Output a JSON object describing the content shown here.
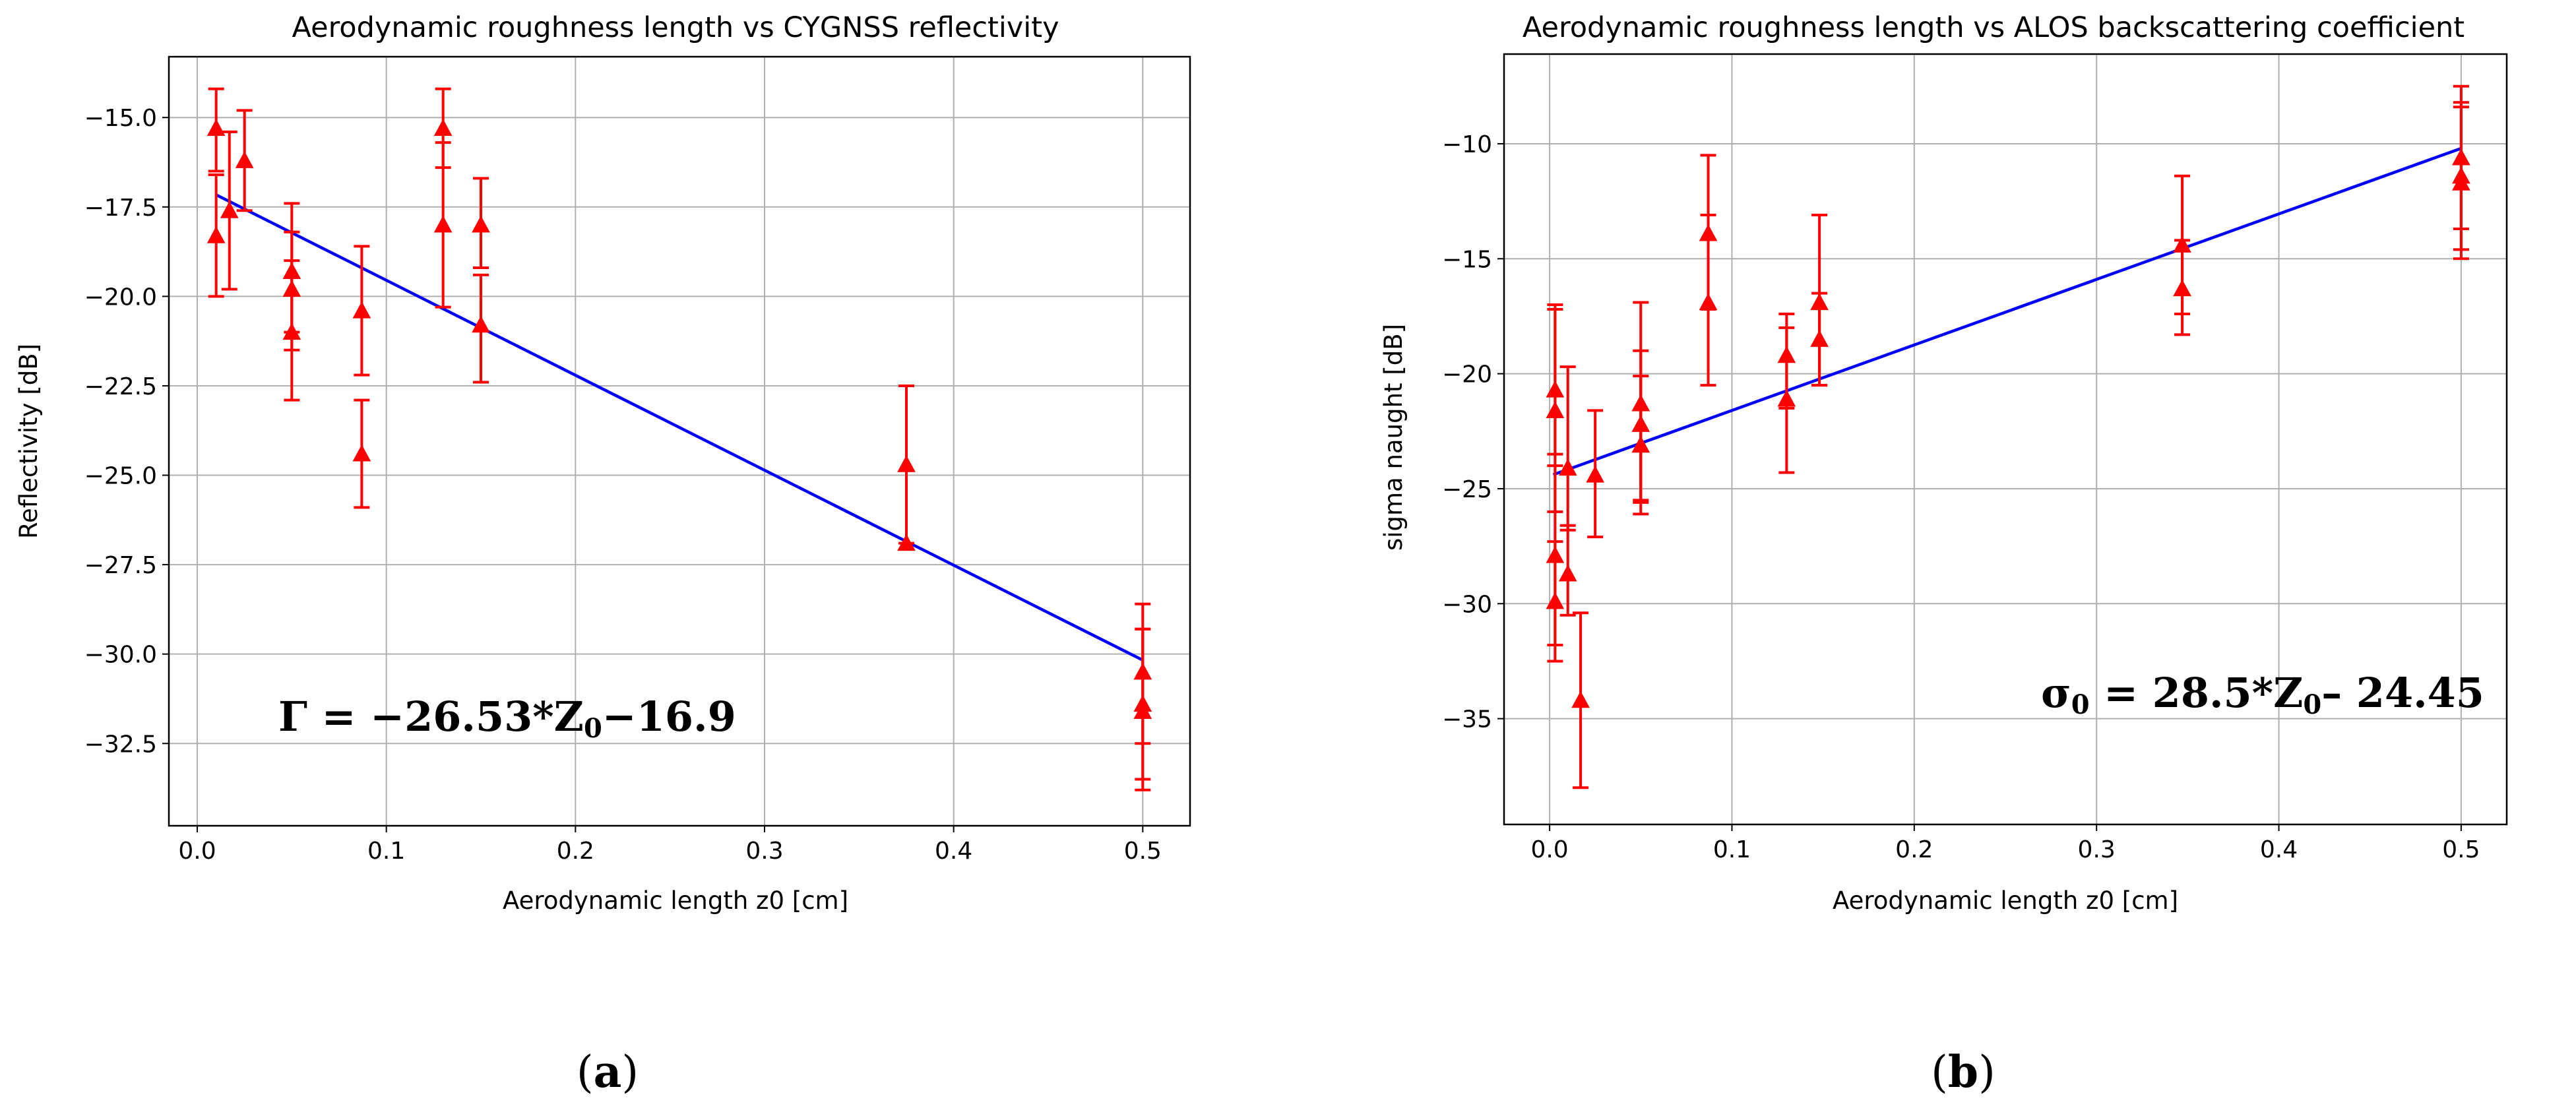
{
  "chart_data": [
    {
      "type": "scatter",
      "panel_label": "a",
      "title": "Aerodynamic roughness length vs CYGNSS reflectivity",
      "xlabel": "Aerodynamic length z0 [cm]",
      "ylabel": "Reflectivity [dB]",
      "xlim": [
        -0.015,
        0.525
      ],
      "ylim": [
        -34.8,
        -13.3
      ],
      "xticks": [
        0.0,
        0.1,
        0.2,
        0.3,
        0.4,
        0.5
      ],
      "xtick_labels": [
        "0.0",
        "0.1",
        "0.2",
        "0.3",
        "0.4",
        "0.5"
      ],
      "yticks": [
        -15.0,
        -17.5,
        -20.0,
        -22.5,
        -25.0,
        -27.5,
        -30.0,
        -32.5
      ],
      "ytick_labels": [
        "−15.0",
        "−17.5",
        "−20.0",
        "−22.5",
        "−25.0",
        "−27.5",
        "−30.0",
        "−32.5"
      ],
      "grid": true,
      "marker_color": "#ff0000",
      "line_color": "#0000ff",
      "points": [
        {
          "x": 0.01,
          "y": -15.3,
          "lo": -16.5,
          "hi": -14.2
        },
        {
          "x": 0.01,
          "y": -18.3,
          "lo": -20.0,
          "hi": -16.6
        },
        {
          "x": 0.017,
          "y": -17.6,
          "lo": -19.8,
          "hi": -15.4
        },
        {
          "x": 0.025,
          "y": -16.2,
          "lo": -17.6,
          "hi": -14.8
        },
        {
          "x": 0.05,
          "y": -19.3,
          "lo": -21.0,
          "hi": -17.4
        },
        {
          "x": 0.05,
          "y": -19.8,
          "lo": -21.5,
          "hi": -18.2
        },
        {
          "x": 0.05,
          "y": -21.0,
          "lo": -22.9,
          "hi": -19.0
        },
        {
          "x": 0.087,
          "y": -20.4,
          "lo": -22.2,
          "hi": -18.6
        },
        {
          "x": 0.087,
          "y": -24.4,
          "lo": -25.9,
          "hi": -22.9
        },
        {
          "x": 0.13,
          "y": -15.3,
          "lo": -16.4,
          "hi": -14.2
        },
        {
          "x": 0.13,
          "y": -18.0,
          "lo": -20.3,
          "hi": -15.7
        },
        {
          "x": 0.15,
          "y": -18.0,
          "lo": -19.2,
          "hi": -16.7
        },
        {
          "x": 0.15,
          "y": -20.8,
          "lo": -22.4,
          "hi": -19.4
        },
        {
          "x": 0.375,
          "y": -24.7,
          "lo": -26.9,
          "hi": -22.5
        },
        {
          "x": 0.375,
          "y": -26.9,
          "lo": -26.9,
          "hi": -26.9
        },
        {
          "x": 0.5,
          "y": -30.5,
          "lo": -32.5,
          "hi": -28.6
        },
        {
          "x": 0.5,
          "y": -31.4,
          "lo": -33.5,
          "hi": -29.3
        },
        {
          "x": 0.5,
          "y": -31.6,
          "lo": -33.8,
          "hi": -29.3
        }
      ],
      "fit_line": {
        "x": [
          0.01,
          0.5
        ],
        "y": [
          -17.16,
          -30.17
        ]
      },
      "equation": {
        "lhs": "Γ",
        "rest": " = −26.53*Z",
        "sub": "0",
        "tail": "−16.9"
      }
    },
    {
      "type": "scatter",
      "panel_label": "b",
      "title": "Aerodynamic roughness length vs ALOS backscattering coefficient",
      "xlabel": "Aerodynamic length z0 [cm]",
      "ylabel": "sigma naught [dB]",
      "xlim": [
        -0.025,
        0.525
      ],
      "ylim": [
        -39.6,
        -6.1
      ],
      "xticks": [
        0.0,
        0.1,
        0.2,
        0.3,
        0.4,
        0.5
      ],
      "xtick_labels": [
        "0.0",
        "0.1",
        "0.2",
        "0.3",
        "0.4",
        "0.5"
      ],
      "yticks": [
        -10,
        -15,
        -20,
        -25,
        -30,
        -35
      ],
      "ytick_labels": [
        "−10",
        "−15",
        "−20",
        "−25",
        "−30",
        "−35"
      ],
      "grid": true,
      "marker_color": "#ff0000",
      "line_color": "#0000ff",
      "points": [
        {
          "x": 0.003,
          "y": -20.7,
          "lo": -23.5,
          "hi": -17.0
        },
        {
          "x": 0.003,
          "y": -21.6,
          "lo": -26.0,
          "hi": -17.2
        },
        {
          "x": 0.003,
          "y": -27.9,
          "lo": -31.8,
          "hi": -24.0
        },
        {
          "x": 0.003,
          "y": -29.9,
          "lo": -32.5,
          "hi": -27.3
        },
        {
          "x": 0.01,
          "y": -24.1,
          "lo": -26.8,
          "hi": -19.7
        },
        {
          "x": 0.01,
          "y": -28.7,
          "lo": -30.5,
          "hi": -26.6
        },
        {
          "x": 0.017,
          "y": -34.2,
          "lo": -38.0,
          "hi": -30.4
        },
        {
          "x": 0.025,
          "y": -24.4,
          "lo": -27.1,
          "hi": -21.6
        },
        {
          "x": 0.05,
          "y": -21.3,
          "lo": -25.5,
          "hi": -16.9
        },
        {
          "x": 0.05,
          "y": -22.2,
          "lo": -25.6,
          "hi": -19.0
        },
        {
          "x": 0.05,
          "y": -23.1,
          "lo": -26.1,
          "hi": -20.1
        },
        {
          "x": 0.087,
          "y": -13.9,
          "lo": -17.2,
          "hi": -10.5
        },
        {
          "x": 0.087,
          "y": -16.9,
          "lo": -20.5,
          "hi": -13.1
        },
        {
          "x": 0.13,
          "y": -19.2,
          "lo": -21.5,
          "hi": -17.4
        },
        {
          "x": 0.13,
          "y": -21.1,
          "lo": -24.3,
          "hi": -18.0
        },
        {
          "x": 0.148,
          "y": -16.9,
          "lo": -20.5,
          "hi": -13.1
        },
        {
          "x": 0.148,
          "y": -18.5,
          "lo": -20.5,
          "hi": -16.5
        },
        {
          "x": 0.347,
          "y": -14.4,
          "lo": -17.4,
          "hi": -11.4
        },
        {
          "x": 0.347,
          "y": -16.3,
          "lo": -18.3,
          "hi": -14.2
        },
        {
          "x": 0.5,
          "y": -10.6,
          "lo": -13.7,
          "hi": -7.5
        },
        {
          "x": 0.5,
          "y": -11.4,
          "lo": -14.6,
          "hi": -8.2
        },
        {
          "x": 0.5,
          "y": -11.7,
          "lo": -15.0,
          "hi": -8.4
        }
      ],
      "fit_line": {
        "x": [
          0.002,
          0.5
        ],
        "y": [
          -24.39,
          -10.2
        ]
      },
      "equation": {
        "lhs": "σ",
        "lhs_sub": "0",
        "rest": " = 28.5*Z",
        "sub": "0",
        "tail": "– 24.45"
      }
    }
  ]
}
